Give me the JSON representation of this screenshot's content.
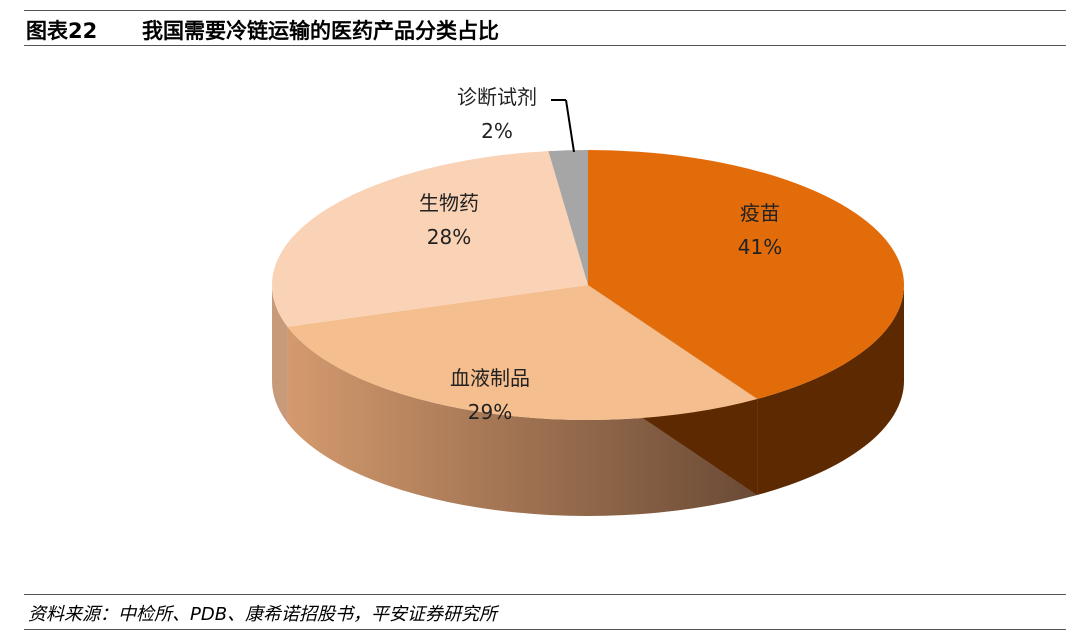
{
  "header": {
    "figure_number": "图表22",
    "title": "我国需要冷链运输的医药产品分类占比"
  },
  "chart_data": {
    "type": "pie",
    "title": "",
    "slices": [
      {
        "label": "疫苗",
        "value": 41,
        "value_label": "41%",
        "color": "#E36C0A",
        "side_color": "#5C2900"
      },
      {
        "label": "血液制品",
        "value": 29,
        "value_label": "29%",
        "color": "#F5BE8E",
        "side_color": "#B87D55"
      },
      {
        "label": "生物药",
        "value": 28,
        "value_label": "28%",
        "color": "#FAD2B5",
        "side_color": "#C79A7A"
      },
      {
        "label": "诊断试剂",
        "value": 2,
        "value_label": "2%",
        "color": "#A6A6A6",
        "side_color": "#6E6E6E"
      }
    ]
  },
  "footer": {
    "source": "资料来源：中检所、PDB、康希诺招股书，平安证券研究所"
  }
}
